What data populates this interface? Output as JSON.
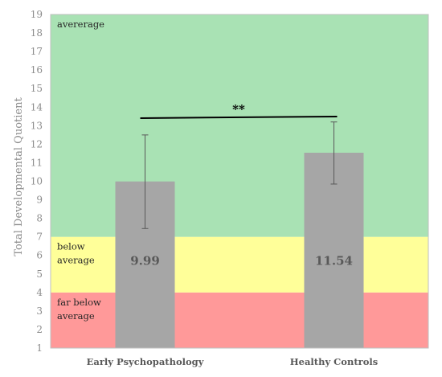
{
  "chart_data": {
    "type": "bar",
    "ylabel": "Total Developmental Quotient",
    "xlabel": "",
    "ylim": [
      1,
      19
    ],
    "yticks": [
      1,
      2,
      3,
      4,
      5,
      6,
      7,
      8,
      9,
      10,
      11,
      12,
      13,
      14,
      15,
      16,
      17,
      18,
      19
    ],
    "categories": [
      "Early Psychopathology",
      "Healthy Controls"
    ],
    "values": [
      9.99,
      11.54
    ],
    "value_labels": [
      "9.99",
      "11.54"
    ],
    "error_bars": [
      {
        "low": 7.45,
        "high": 12.5
      },
      {
        "low": 9.85,
        "high": 13.2
      }
    ],
    "bands": [
      {
        "from": 1,
        "to": 4,
        "label": [
          "far below",
          "average"
        ],
        "color": "#ff9999"
      },
      {
        "from": 4,
        "to": 7,
        "label": [
          "below",
          "average"
        ],
        "color": "#ffff99"
      },
      {
        "from": 7,
        "to": 19,
        "label": [
          "avererage"
        ],
        "color": "#a9e2b4"
      }
    ],
    "significance": {
      "label": "**",
      "y": 13.45
    },
    "colors": {
      "bar": "#a6a6a6",
      "error": "#595959",
      "frame": "#bfbfbf"
    },
    "grid": false,
    "legend": "none"
  }
}
